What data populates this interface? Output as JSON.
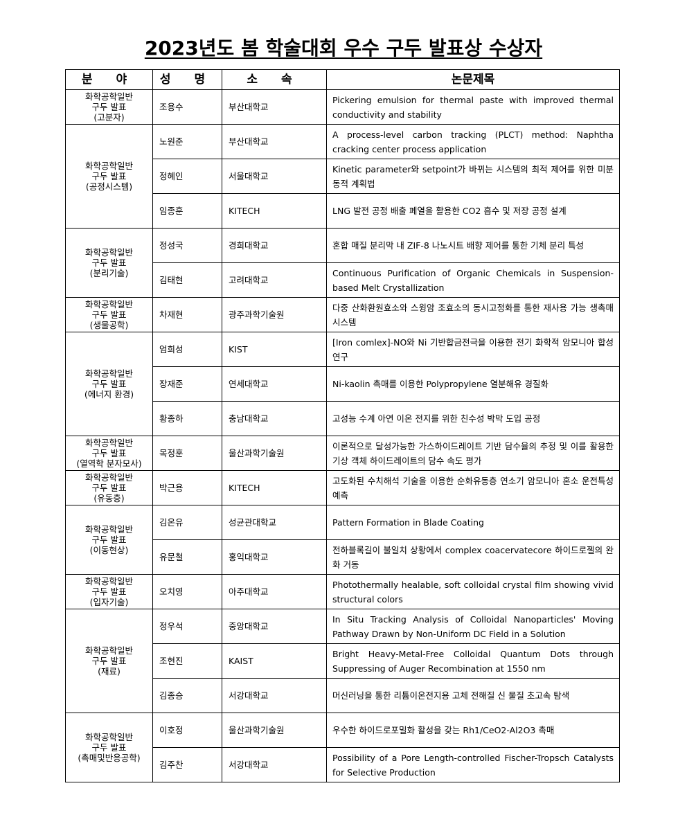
{
  "title": "2023년도 봄 학술대회 우수 구두 발표상 수상자",
  "headers": [
    "분 야",
    "성 명",
    "소 속",
    "논문제목"
  ],
  "groups": [
    {
      "field": [
        "화학공학일반",
        "구두 발표",
        "(고분자)"
      ],
      "rows": [
        {
          "name": "조용수",
          "affiliation": "부산대학교",
          "paper": "Pickering emulsion for thermal paste with improved thermal conductivity and stability"
        }
      ]
    },
    {
      "field": [
        "화학공학일반",
        "구두 발표",
        "(공정시스템)"
      ],
      "rows": [
        {
          "name": "노원준",
          "affiliation": "부산대학교",
          "paper": "A process-level carbon tracking (PLCT) method: Naphtha cracking center process application"
        },
        {
          "name": "정혜인",
          "affiliation": "서울대학교",
          "paper": "Kinetic parameter와 setpoint가 바뀌는 시스템의 최적 제어를 위한 미분 동적 계획법"
        },
        {
          "name": "임종훈",
          "affiliation": "KITECH",
          "paper": "LNG 발전 공정 배출 폐열을 활용한 CO2 흡수 및 저장 공정 설계"
        }
      ]
    },
    {
      "field": [
        "화학공학일반",
        "구두 발표",
        "(분리기술)"
      ],
      "rows": [
        {
          "name": "정성국",
          "affiliation": "경희대학교",
          "paper": "혼합 매질 분리막 내 ZIF-8 나노시트 배향 제어를 통한 기체 분리 특성"
        },
        {
          "name": "김태현",
          "affiliation": "고려대학교",
          "paper": "Continuous Purification of Organic Chemicals in Suspension-based Melt Crystallization"
        }
      ]
    },
    {
      "field": [
        "화학공학일반",
        "구두 발표",
        "(생물공학)"
      ],
      "rows": [
        {
          "name": "차재현",
          "affiliation": "광주과학기술원",
          "paper": "다중 산화환원효소와 스윙암 조효소의 동시고정화를 통한 재사용 가능 생촉매 시스템"
        }
      ]
    },
    {
      "field": [
        "화학공학일반",
        "구두 발표",
        "(에너지 환경)"
      ],
      "rows": [
        {
          "name": "엄희성",
          "affiliation": "KIST",
          "paper": "[Iron comlex]-NO와 Ni 기반합금전극을 이용한 전기 화학적 암모니아 합성 연구"
        },
        {
          "name": "장재준",
          "affiliation": "연세대학교",
          "paper": "Ni-kaolin 촉매를 이용한 Polypropylene 열분해유 경질화"
        },
        {
          "name": "황종하",
          "affiliation": "충남대학교",
          "paper": "고성능 수계 아연 이온 전지를 위한 친수성 박막 도입 공정"
        }
      ]
    },
    {
      "field": [
        "화학공학일반",
        "구두 발표",
        "(열역학 분자모사)"
      ],
      "rows": [
        {
          "name": "목정훈",
          "affiliation": "울산과학기술원",
          "paper": "이론적으로 달성가능한 가스하이드레이트 기반 담수율의 추정 및 이를 활용한 기상 객체 하이드레이트의 담수 속도 평가"
        }
      ]
    },
    {
      "field": [
        "화학공학일반",
        "구두 발표",
        "(유동층)"
      ],
      "rows": [
        {
          "name": "박근용",
          "affiliation": "KITECH",
          "paper": "고도화된 수치해석 기술을 이용한 순화유동층 연소기 암모니아 혼소 운전특성 예측"
        }
      ]
    },
    {
      "field": [
        "화학공학일반",
        "구두 발표",
        "(이동현상)"
      ],
      "rows": [
        {
          "name": "김온유",
          "affiliation": "성균관대학교",
          "paper": "Pattern Formation in Blade Coating"
        },
        {
          "name": "유문철",
          "affiliation": "홍익대학교",
          "paper": "전하블록길이 불일치 상황에서 complex coacervatecore 하이드로젤의 완화 거동"
        }
      ]
    },
    {
      "field": [
        "화학공학일반",
        "구두 발표",
        "(입자기술)"
      ],
      "rows": [
        {
          "name": "오치영",
          "affiliation": "아주대학교",
          "paper": "Photothermally healable, soft colloidal crystal film showing vivid structural colors"
        }
      ]
    },
    {
      "field": [
        "화학공학일반",
        "구두 발표",
        "(재료)"
      ],
      "rows": [
        {
          "name": "정우석",
          "affiliation": "중앙대학교",
          "paper": "In Situ Tracking Analysis of Colloidal Nanoparticles' Moving Pathway Drawn by Non-Uniform DC Field in a Solution"
        },
        {
          "name": "조현진",
          "affiliation": "KAIST",
          "paper": "Bright Heavy-Metal-Free Colloidal Quantum Dots through Suppressing of Auger Recombination at 1550 nm"
        },
        {
          "name": "김종승",
          "affiliation": "서강대학교",
          "paper": "머신러닝을 통한 리튬이온전지용 고체 전해질 신 물질 초고속 탐색"
        }
      ]
    },
    {
      "field": [
        "화학공학일반",
        "구두 발표",
        "(촉매및반응공학)"
      ],
      "rows": [
        {
          "name": "이호정",
          "affiliation": "울산과학기술원",
          "paper": "우수한 하이드로포밀화 활성을 갖는 Rh1/CeO2-Al2O3 촉매"
        },
        {
          "name": "김주찬",
          "affiliation": "서강대학교",
          "paper": "Possibility of a Pore Length-controlled Fischer-Tropsch Catalysts for Selective Production"
        }
      ]
    }
  ]
}
